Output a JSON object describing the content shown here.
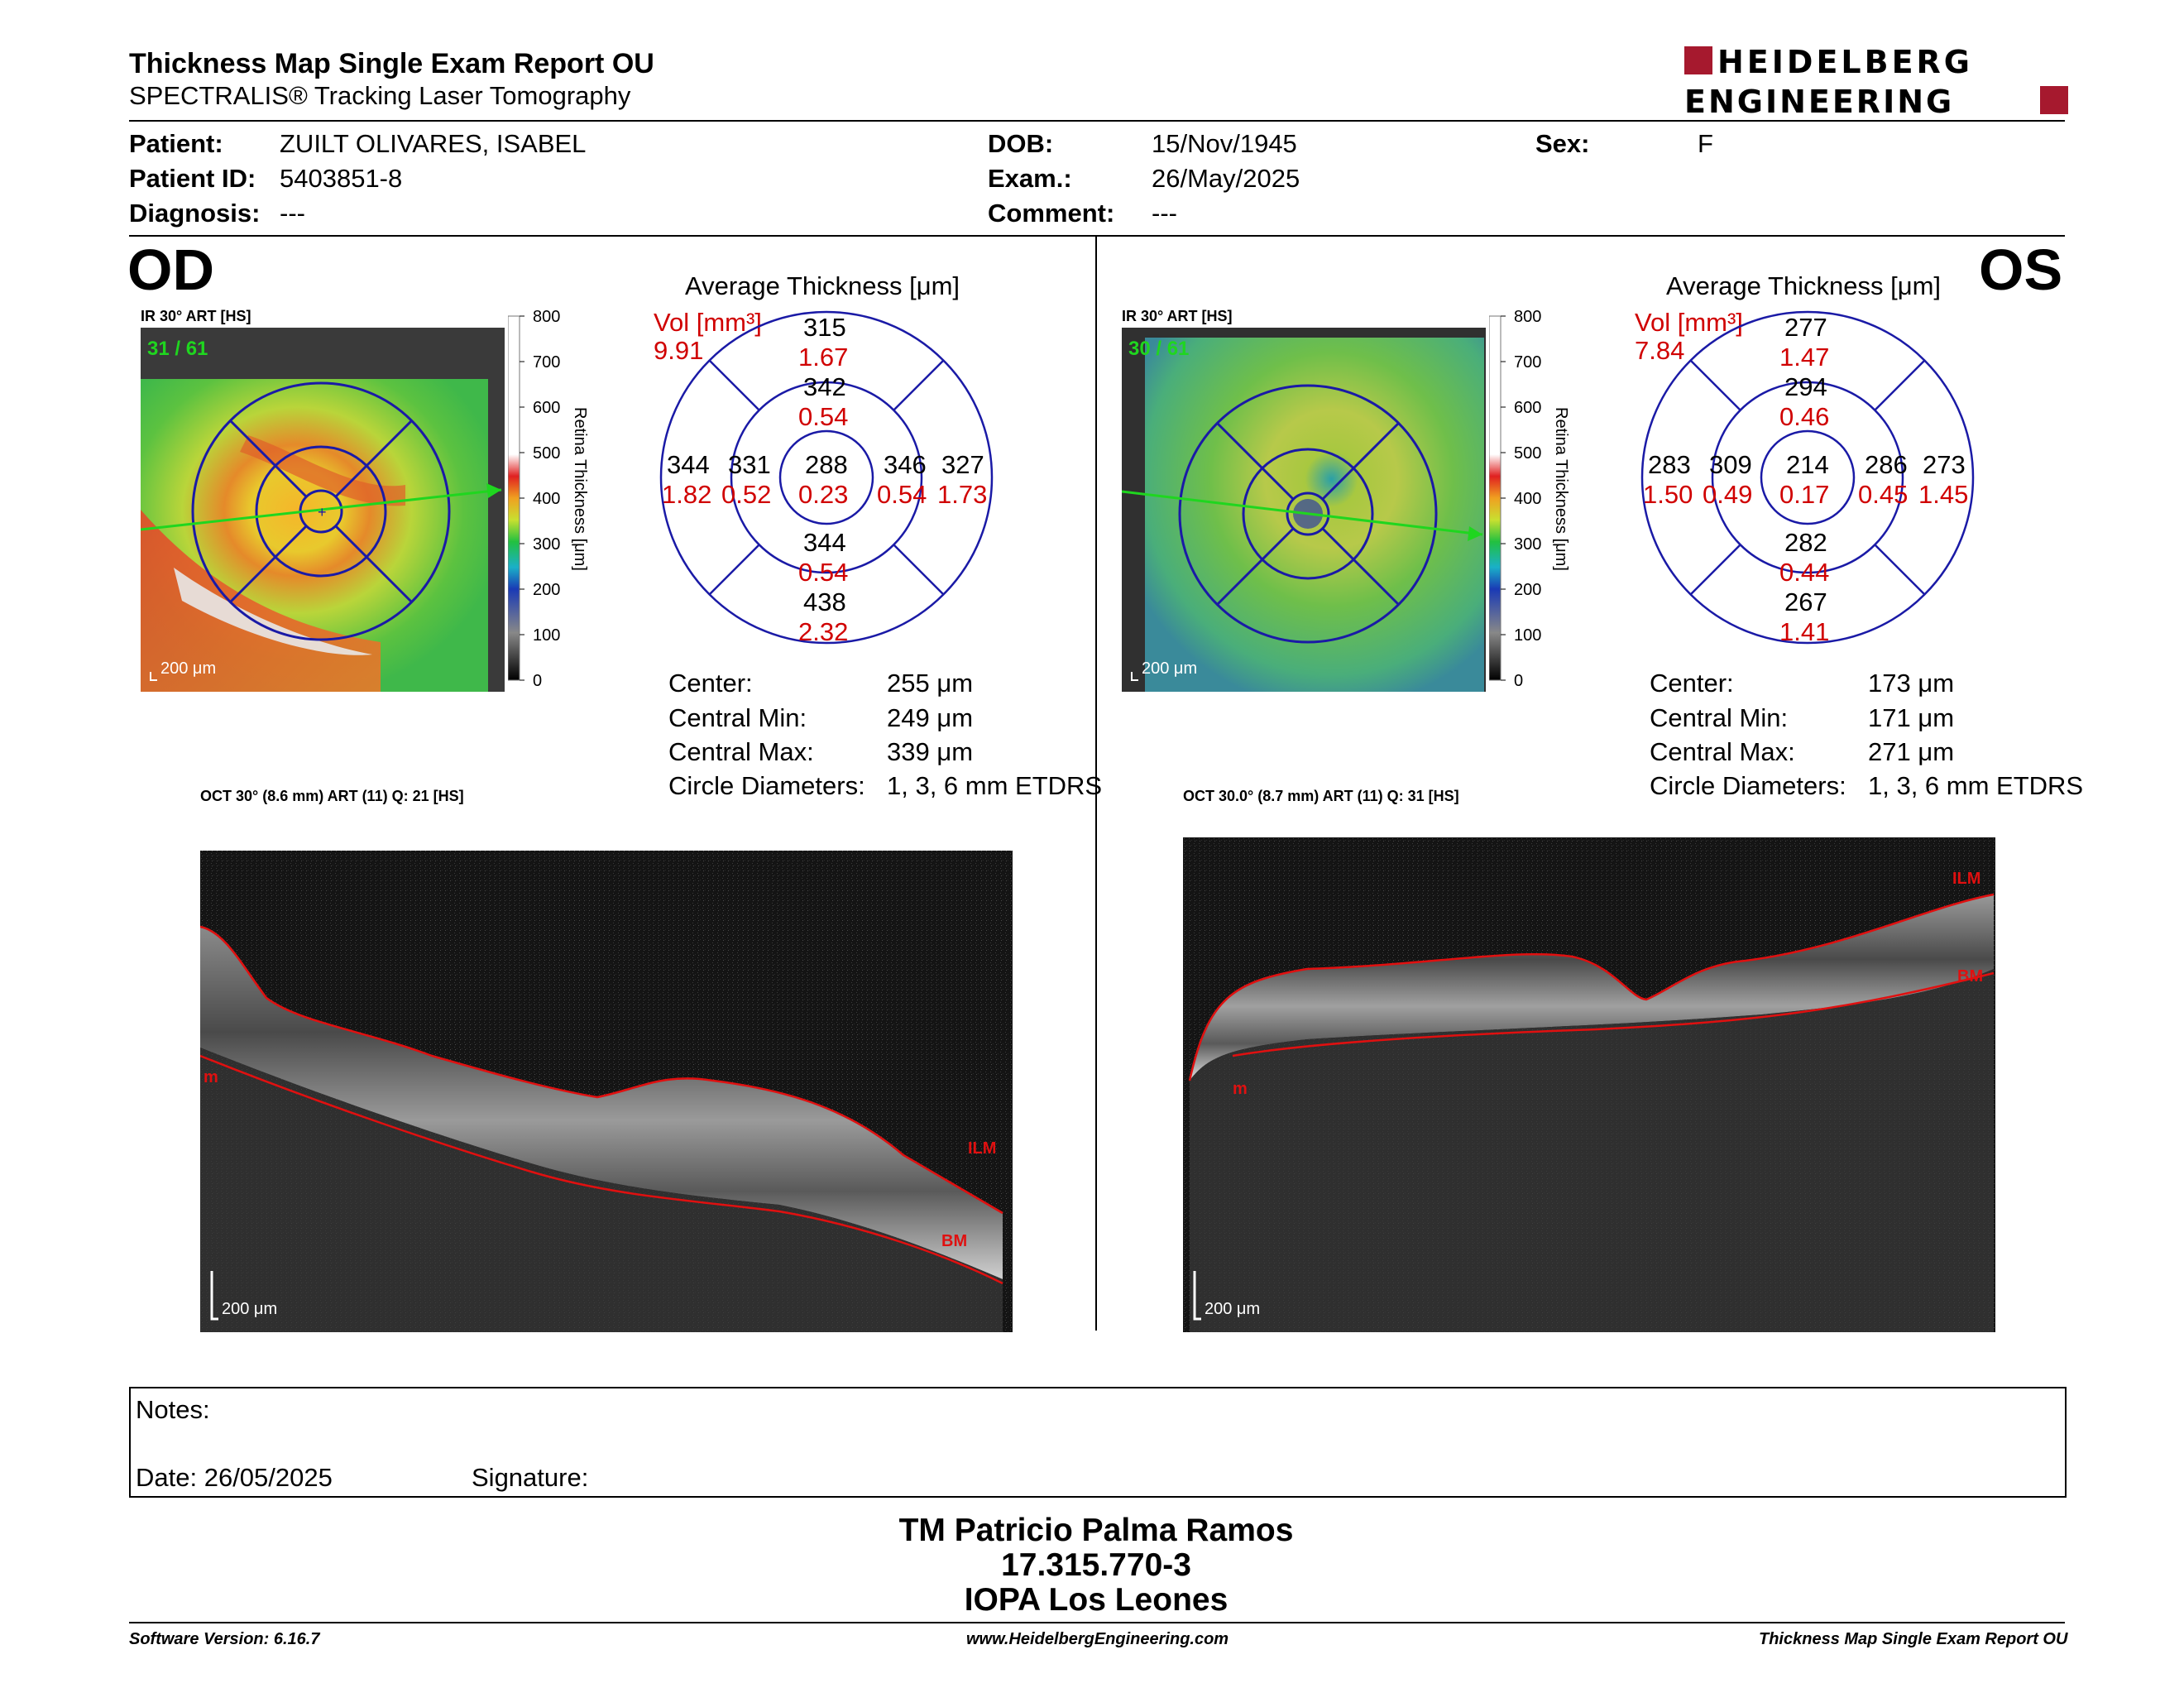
{
  "header": {
    "title": "Thickness Map Single Exam Report OU",
    "subtitle": "SPECTRALIS® Tracking Laser Tomography",
    "logo_line1": "HEIDELBERG",
    "logo_line2": "ENGINEERING",
    "brand_color": "#a6192e"
  },
  "patient": {
    "patient_label": "Patient:",
    "patient_value": "ZUILT OLIVARES, ISABEL",
    "id_label": "Patient ID:",
    "id_value": "5403851-8",
    "diagnosis_label": "Diagnosis:",
    "diagnosis_value": "---",
    "dob_label": "DOB:",
    "dob_value": "15/Nov/1945",
    "exam_label": "Exam.:",
    "exam_value": "26/May/2025",
    "comment_label": "Comment:",
    "comment_value": "---",
    "sex_label": "Sex:",
    "sex_value": "F"
  },
  "colorbar": {
    "ticks": [
      "800",
      "700",
      "600",
      "500",
      "400",
      "300",
      "200",
      "100",
      "0"
    ],
    "label": "Retina  Thickness [μm]"
  },
  "od": {
    "eye": "OD",
    "fundus_label": "IR 30° ART [HS]",
    "frame": "31 / 61",
    "scale": "200 μm",
    "avg_title": "Average Thickness [μm]",
    "vol_label": "Vol [mm³]",
    "vol_value": "9.91",
    "sectors": {
      "outer_sup": [
        "315",
        "1.67"
      ],
      "inner_sup": [
        "342",
        "0.54"
      ],
      "outer_temp": [
        "344",
        "1.82"
      ],
      "inner_temp": [
        "331",
        "0.52"
      ],
      "center": [
        "288",
        "0.23"
      ],
      "inner_nas": [
        "346",
        "0.54"
      ],
      "outer_nas": [
        "327",
        "1.73"
      ],
      "inner_inf": [
        "344",
        "0.54"
      ],
      "outer_inf": [
        "438",
        "2.32"
      ]
    },
    "stats": [
      [
        "Center:",
        "255 μm"
      ],
      [
        "Central Min:",
        "249 μm"
      ],
      [
        "Central Max:",
        "339 μm"
      ],
      [
        "Circle Diameters:",
        "1, 3, 6 mm ETDRS"
      ]
    ],
    "oct_label": "OCT 30° (8.6 mm) ART (11) Q: 21 [HS]",
    "oct_scale": "200 μm",
    "ilm": "ILM",
    "bm": "BM",
    "rm": "m"
  },
  "os": {
    "eye": "OS",
    "fundus_label": "IR 30° ART [HS]",
    "frame": "30 / 61",
    "scale": "200 μm",
    "avg_title": "Average Thickness [μm]",
    "vol_label": "Vol [mm³]",
    "vol_value": "7.84",
    "sectors": {
      "outer_sup": [
        "277",
        "1.47"
      ],
      "inner_sup": [
        "294",
        "0.46"
      ],
      "outer_temp": [
        "283",
        "1.50"
      ],
      "inner_temp": [
        "309",
        "0.49"
      ],
      "center": [
        "214",
        "0.17"
      ],
      "inner_nas": [
        "286",
        "0.45"
      ],
      "outer_nas": [
        "273",
        "1.45"
      ],
      "inner_inf": [
        "282",
        "0.44"
      ],
      "outer_inf": [
        "267",
        "1.41"
      ]
    },
    "stats": [
      [
        "Center:",
        "173 μm"
      ],
      [
        "Central Min:",
        "171 μm"
      ],
      [
        "Central Max:",
        "271 μm"
      ],
      [
        "Circle Diameters:",
        "1, 3, 6 mm ETDRS"
      ]
    ],
    "oct_label": "OCT 30.0° (8.7 mm) ART (11) Q: 31 [HS]",
    "oct_scale": "200 μm",
    "ilm": "ILM",
    "bm": "BM",
    "rm": "m"
  },
  "notes": {
    "notes_label": "Notes:",
    "date_label": "Date: 26/05/2025",
    "signature_label": "Signature:"
  },
  "signer": {
    "name": "TM Patricio Palma Ramos",
    "id": "17.315.770-3",
    "institution": "IOPA Los Leones"
  },
  "footer": {
    "version": "Software Version: 6.16.7",
    "website": "www.HeidelbergEngineering.com",
    "report": "Thickness Map Single Exam Report OU"
  }
}
